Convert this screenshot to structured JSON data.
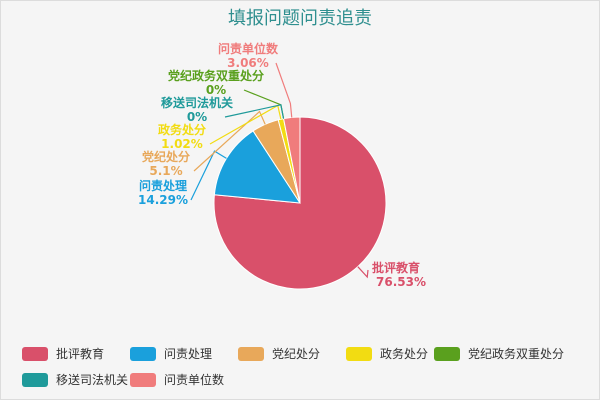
{
  "chart_data": {
    "type": "pie",
    "title": "填报问题问责追责",
    "series": [
      {
        "name": "批评教育",
        "value": 76.53,
        "label": "76.53%",
        "color": "#d9506a"
      },
      {
        "name": "问责处理",
        "value": 14.29,
        "label": "14.29%",
        "color": "#1aa0dc"
      },
      {
        "name": "党纪处分",
        "value": 5.1,
        "label": "5.1%",
        "color": "#e8a85a"
      },
      {
        "name": "政务处分",
        "value": 1.02,
        "label": "1.02%",
        "color": "#f2dc12"
      },
      {
        "name": "党纪政务双重处分",
        "value": 0,
        "label": "0%",
        "color": "#5aa01e"
      },
      {
        "name": "移送司法机关",
        "value": 0,
        "label": "0%",
        "color": "#1f9a9a"
      },
      {
        "name": "问责单位数",
        "value": 3.06,
        "label": "3.06%",
        "color": "#f07c7c"
      }
    ],
    "legend_position": "bottom"
  }
}
